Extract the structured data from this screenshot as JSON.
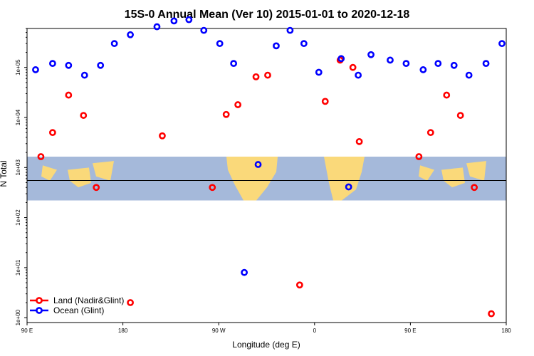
{
  "chart_data": {
    "type": "scatter",
    "title": "15S-0 Annual Mean (Ver 10)   2015-01-01 to 2020-12-18",
    "xlabel": "Longitude (deg E)",
    "ylabel": "N Total",
    "x_ticks": [
      {
        "value": 90,
        "label": "90 E"
      },
      {
        "value": 180,
        "label": "180"
      },
      {
        "value": 270,
        "label": "90 W"
      },
      {
        "value": 360,
        "label": "0"
      },
      {
        "value": 450,
        "label": "90 E"
      },
      {
        "value": 540,
        "label": "180"
      }
    ],
    "xlim": [
      90,
      540
    ],
    "y_scale": "log",
    "y_ticks": [
      {
        "value": 1,
        "label": "1e+00"
      },
      {
        "value": 10,
        "label": "1e+01"
      },
      {
        "value": 100,
        "label": "1e+02"
      },
      {
        "value": 1000,
        "label": "1e+03"
      },
      {
        "value": 10000,
        "label": "1e+04"
      },
      {
        "value": 100000,
        "label": "1e+05"
      }
    ],
    "ylim": [
      0.8,
      600000
    ],
    "reference_line": 550,
    "map_band": {
      "ymin": 220,
      "ymax": 1650,
      "ocean_color": "#a5b9da",
      "land_color": "#fad97a"
    },
    "legend_position": "bottom-left",
    "series": [
      {
        "name": "Land (Nadir&Glint)",
        "color": "#ff0000",
        "points": [
          [
            103,
            1650
          ],
          [
            114,
            5000
          ],
          [
            129,
            28000
          ],
          [
            143,
            11000
          ],
          [
            155,
            400
          ],
          [
            187,
            2
          ],
          [
            217,
            4300
          ],
          [
            264,
            400
          ],
          [
            277,
            11500
          ],
          [
            288,
            18000
          ],
          [
            305,
            65000
          ],
          [
            316,
            70000
          ],
          [
            346,
            4.5
          ],
          [
            370,
            21000
          ],
          [
            384,
            140000
          ],
          [
            396,
            100000
          ],
          [
            402,
            3300
          ],
          [
            458,
            1650
          ],
          [
            469,
            5000
          ],
          [
            484,
            28000
          ],
          [
            497,
            11000
          ],
          [
            510,
            400
          ],
          [
            526,
            1.2
          ]
        ]
      },
      {
        "name": "Ocean (Glint)",
        "color": "#0000ff",
        "points": [
          [
            98,
            90000
          ],
          [
            114,
            120000
          ],
          [
            129,
            110000
          ],
          [
            144,
            70000
          ],
          [
            159,
            110000
          ],
          [
            172,
            300000
          ],
          [
            187,
            450000
          ],
          [
            212,
            650000
          ],
          [
            228,
            850000
          ],
          [
            242,
            900000
          ],
          [
            256,
            550000
          ],
          [
            271,
            300000
          ],
          [
            284,
            120000
          ],
          [
            294,
            8
          ],
          [
            307,
            1150
          ],
          [
            324,
            270000
          ],
          [
            337,
            550000
          ],
          [
            350,
            300000
          ],
          [
            364,
            80000
          ],
          [
            385,
            150000
          ],
          [
            392,
            410
          ],
          [
            401,
            70000
          ],
          [
            413,
            180000
          ],
          [
            431,
            140000
          ],
          [
            446,
            120000
          ],
          [
            462,
            90000
          ],
          [
            476,
            120000
          ],
          [
            491,
            110000
          ],
          [
            505,
            70000
          ],
          [
            521,
            120000
          ],
          [
            536,
            300000
          ]
        ]
      }
    ]
  }
}
